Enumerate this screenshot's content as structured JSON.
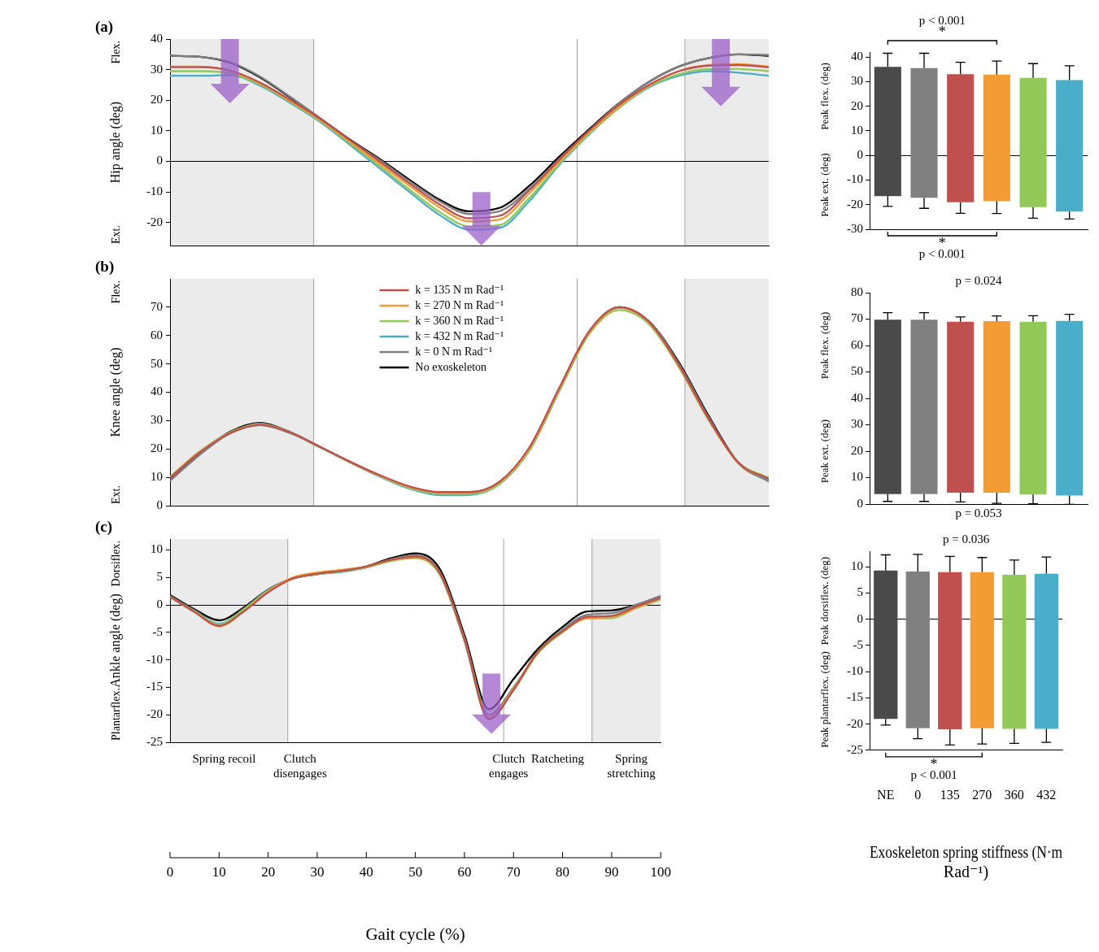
{
  "chart_data": [
    {
      "type": "line",
      "panel": "(a)",
      "y_label": "Hip angle (deg)",
      "y_end_labels": {
        "top": "Flex.",
        "bottom": "Ext."
      },
      "x": [
        0,
        5,
        10,
        15,
        20,
        25,
        30,
        35,
        40,
        45,
        50,
        55,
        60,
        65,
        70,
        75,
        80,
        85,
        90,
        95,
        100
      ],
      "xlim": [
        0,
        100
      ],
      "ylim": [
        -27.5,
        40
      ],
      "yticks": [
        -20,
        -10,
        0,
        10,
        20,
        30,
        40
      ],
      "tick_labels": "y",
      "shaded": [
        [
          0,
          24
        ],
        [
          86,
          100
        ]
      ],
      "vlines": [
        24,
        68,
        86
      ],
      "arrows": [
        {
          "x": 10,
          "y_from": 40,
          "y_to": 19,
          "color": "#9b5fc9"
        },
        {
          "x": 52,
          "y_from": -10,
          "y_to": -27.5,
          "color": "#9b5fc9"
        },
        {
          "x": 92,
          "y_from": 40,
          "y_to": 18,
          "color": "#9b5fc9"
        }
      ],
      "series": [
        {
          "name": "k = 135 N m Rad⁻¹",
          "color": "#c0504d",
          "values": [
            30.8,
            30.8,
            29.7,
            25.8,
            20.2,
            14,
            7,
            0,
            -7.2,
            -14,
            -18.6,
            -17.8,
            -9.5,
            0.5,
            10,
            18.5,
            25,
            29.5,
            31.3,
            31.5,
            30.8
          ]
        },
        {
          "name": "k = 270 N m Rad⁻¹",
          "color": "#f39c33",
          "values": [
            31,
            31,
            29.6,
            25.5,
            19.8,
            13.6,
            6.5,
            -0.8,
            -8,
            -15,
            -19.6,
            -19,
            -10.5,
            0,
            9.5,
            18,
            24.8,
            29.5,
            31.5,
            31.8,
            31
          ]
        },
        {
          "name": "k = 360 N m Rad⁻¹",
          "color": "#92c857",
          "values": [
            29.5,
            29.5,
            28.8,
            25.2,
            19.6,
            13.4,
            6,
            -1.5,
            -9.2,
            -16.5,
            -21.2,
            -20.8,
            -12,
            -0.8,
            9,
            17.5,
            24.5,
            28.5,
            30.2,
            30.2,
            29.5
          ]
        },
        {
          "name": "k = 432 N m Rad⁻¹",
          "color": "#4aaecb",
          "values": [
            28,
            28,
            28.2,
            24.8,
            19.2,
            13,
            5.5,
            -2.2,
            -10,
            -17.5,
            -22.3,
            -21.8,
            -13,
            -1.2,
            8.8,
            17.5,
            24.2,
            28,
            29.5,
            29,
            28
          ]
        },
        {
          "name": "k = 0 N m Rad⁻¹",
          "color": "#808080",
          "values": [
            34.5,
            34.2,
            32.5,
            27.8,
            21.2,
            14.2,
            7,
            0.5,
            -6.5,
            -13,
            -17.2,
            -16.3,
            -9,
            0.8,
            10,
            19,
            26,
            31,
            33.8,
            35,
            34.8
          ]
        },
        {
          "name": "No exoskeleton",
          "color": "#000000",
          "values": [
            34.5,
            34.2,
            32.3,
            27.5,
            21,
            14.2,
            7.2,
            0.8,
            -6,
            -12.5,
            -16.3,
            -15.2,
            -8,
            1.5,
            10.5,
            19,
            26,
            31,
            33.8,
            35,
            34.5
          ]
        }
      ]
    },
    {
      "type": "line",
      "panel": "(b)",
      "y_label": "Knee angle (deg)",
      "y_end_labels": {
        "top": "Flex.",
        "bottom": "Ext."
      },
      "x": [
        0,
        5,
        10,
        15,
        20,
        25,
        30,
        35,
        40,
        45,
        50,
        55,
        60,
        65,
        70,
        75,
        80,
        85,
        90,
        95,
        100
      ],
      "xlim": [
        0,
        100
      ],
      "ylim": [
        0,
        80
      ],
      "yticks": [
        0,
        10,
        20,
        30,
        40,
        50,
        60,
        70
      ],
      "tick_labels": "y",
      "legend": "top",
      "shaded": [
        [
          0,
          24
        ],
        [
          86,
          100
        ]
      ],
      "vlines": [
        24,
        68,
        86
      ],
      "series": [
        {
          "name": "k = 135 N m Rad⁻¹",
          "color": "#c0504d",
          "values": [
            9.8,
            18.8,
            25.5,
            28.5,
            25.8,
            20.8,
            15.6,
            10.8,
            6.8,
            4.8,
            4.8,
            8.4,
            20.5,
            41.5,
            61.5,
            70,
            64.8,
            49.5,
            30.5,
            15,
            9.5
          ]
        },
        {
          "name": "k = 270 N m Rad⁻¹",
          "color": "#f39c33",
          "values": [
            10,
            19,
            25.6,
            28.6,
            25.8,
            20.8,
            15.5,
            10.6,
            6.6,
            4.6,
            4.6,
            8.2,
            20.2,
            41.2,
            61.2,
            69.8,
            64.6,
            49.2,
            30.2,
            14.8,
            9.5
          ]
        },
        {
          "name": "k = 360 N m Rad⁻¹",
          "color": "#92c857",
          "values": [
            10.2,
            19.2,
            25.8,
            28.6,
            25.8,
            20.8,
            15.5,
            10.5,
            6.3,
            4.2,
            4.2,
            7.6,
            19.5,
            40.5,
            60.5,
            69,
            64,
            48.8,
            30,
            15.2,
            9.8
          ]
        },
        {
          "name": "k = 432 N m Rad⁻¹",
          "color": "#4aaecb",
          "values": [
            9.8,
            18.8,
            25.5,
            28.4,
            25.6,
            20.6,
            15.3,
            10.3,
            6,
            3.7,
            3.8,
            7.5,
            19.6,
            40.8,
            61,
            69.8,
            64.8,
            49.2,
            30.2,
            15,
            9.2
          ]
        },
        {
          "name": "k = 0 N m Rad⁻¹",
          "color": "#808080",
          "values": [
            8.8,
            18,
            25.5,
            29,
            26,
            20.8,
            15.5,
            10.5,
            6.4,
            4.5,
            4.5,
            7.8,
            19.5,
            40.5,
            61,
            70,
            65,
            50,
            31,
            14.8,
            8.5
          ]
        },
        {
          "name": "No exoskeleton",
          "color": "#000000",
          "values": [
            9,
            18.5,
            26,
            29.2,
            26,
            20.8,
            15.5,
            10.5,
            6.5,
            4.6,
            4.6,
            8,
            19.5,
            40.5,
            61,
            70,
            65,
            50.5,
            31.5,
            15,
            8.8
          ]
        }
      ]
    },
    {
      "type": "line",
      "panel": "(c)",
      "y_label": "Ankle angle (deg)",
      "y_end_labels": {
        "top": "Dorsiflex.",
        "bottom": "Plantarflex."
      },
      "x_label": "Gait cycle (%)",
      "x": [
        0,
        5,
        10,
        15,
        20,
        25,
        30,
        35,
        40,
        45,
        50,
        55,
        60,
        65,
        70,
        75,
        80,
        85,
        90,
        95,
        100
      ],
      "xlim": [
        0,
        100
      ],
      "xticks": [
        0,
        10,
        20,
        30,
        40,
        50,
        60,
        70,
        80,
        90,
        100
      ],
      "ylim": [
        -25,
        12
      ],
      "yticks": [
        -25,
        -20,
        -15,
        -10,
        -5,
        0,
        5,
        10
      ],
      "shaded": [
        [
          0,
          24
        ],
        [
          86,
          100
        ]
      ],
      "vlines": [
        24,
        68,
        86
      ],
      "arrows": [
        {
          "x": 65.5,
          "y_from": -12.5,
          "y_to": -23.5,
          "color": "#9b5fc9"
        }
      ],
      "phase_labels": [
        {
          "x": 11,
          "text": "Spring recoil"
        },
        {
          "x": 26.5,
          "text": "Clutch disengages"
        },
        {
          "x": 69,
          "text": "Clutch engages"
        },
        {
          "x": 79,
          "text": "Ratcheting"
        },
        {
          "x": 94,
          "text": "Spring stretching"
        }
      ],
      "series": [
        {
          "name": "k = 135 N m Rad⁻¹",
          "color": "#c0504d",
          "values": [
            1.5,
            -1.3,
            -3.8,
            -1.2,
            2.3,
            4.8,
            5.7,
            6.2,
            7,
            8.2,
            8.8,
            5.8,
            -6.3,
            -20.8,
            -15.5,
            -8.5,
            -4.8,
            -2.2,
            -2,
            -0.3,
            1.3
          ]
        },
        {
          "name": "k = 270 N m Rad⁻¹",
          "color": "#f39c33",
          "values": [
            1.5,
            -1.3,
            -3.9,
            -1.2,
            2.5,
            5,
            5.9,
            6.4,
            7,
            8.2,
            8.7,
            5.7,
            -6.3,
            -20.6,
            -15.3,
            -8.5,
            -4.8,
            -2.4,
            -2.2,
            -0.5,
            1.2
          ]
        },
        {
          "name": "k = 360 N m Rad⁻¹",
          "color": "#92c857",
          "values": [
            1.4,
            -1.2,
            -3.6,
            -0.8,
            2.6,
            4.8,
            5.6,
            6.1,
            6.8,
            8,
            8.5,
            5.5,
            -6.5,
            -20.5,
            -15.5,
            -8.8,
            -5,
            -2.5,
            -2.4,
            -0.6,
            1
          ]
        },
        {
          "name": "k = 432 N m Rad⁻¹",
          "color": "#4aaecb",
          "values": [
            1.5,
            -1.2,
            -3.5,
            -0.8,
            2.7,
            4.8,
            5.6,
            6,
            6.8,
            8.1,
            8.6,
            5.5,
            -6.6,
            -20.8,
            -15.4,
            -8.6,
            -4.8,
            -2.2,
            -2,
            -0.4,
            1.3
          ]
        },
        {
          "name": "k = 0 N m Rad⁻¹",
          "color": "#808080",
          "values": [
            1.6,
            -1,
            -3.5,
            -0.8,
            2.6,
            4.8,
            5.6,
            6.2,
            7,
            8.3,
            9,
            6,
            -6,
            -20,
            -15,
            -8.5,
            -4.5,
            -1.8,
            -1.5,
            0,
            1.6
          ]
        },
        {
          "name": "No exoskeleton",
          "color": "#000000",
          "values": [
            1.8,
            -0.8,
            -2.8,
            -0.5,
            2.8,
            4.8,
            5.6,
            6.2,
            7,
            8.5,
            9.4,
            6.5,
            -5.5,
            -19,
            -13.5,
            -8,
            -4,
            -1.2,
            -1,
            0,
            1.6
          ]
        }
      ]
    },
    {
      "type": "bar",
      "categories": [
        "NE",
        "0",
        "135",
        "270",
        "360",
        "432"
      ],
      "colors": [
        "#4a4a4a",
        "#808080",
        "#c0504d",
        "#f39c33",
        "#92c857",
        "#4aaecb"
      ],
      "ylim": [
        -30,
        42
      ],
      "yticks": [
        -30,
        -20,
        -10,
        0,
        10,
        20,
        30,
        40
      ],
      "tick_labels": "y",
      "series": [
        {
          "name": "Peak flex. (deg)",
          "values": [
            36,
            35.5,
            33,
            32.8,
            31.5,
            30.6
          ],
          "errors": [
            5.5,
            6,
            4.8,
            5.5,
            5.8,
            5.8
          ]
        },
        {
          "name": "Peak ext. (deg)",
          "values": [
            -16.5,
            -17.2,
            -19,
            -18.6,
            -21,
            -22.8
          ],
          "errors": [
            4.2,
            4.3,
            4.5,
            5,
            4.5,
            3
          ]
        }
      ],
      "annotations": [
        {
          "position": "top",
          "text": "p < 0.001",
          "bracket": [
            "NE",
            "270"
          ],
          "symbol": "*"
        },
        {
          "position": "bottom",
          "text": "p < 0.001",
          "bracket": [
            "NE",
            "270"
          ],
          "symbol": "*"
        }
      ]
    },
    {
      "type": "bar",
      "categories": [
        "NE",
        "0",
        "135",
        "270",
        "360",
        "432"
      ],
      "colors": [
        "#4a4a4a",
        "#808080",
        "#c0504d",
        "#f39c33",
        "#92c857",
        "#4aaecb"
      ],
      "ylim": [
        0,
        80
      ],
      "yticks": [
        0,
        10,
        20,
        30,
        40,
        50,
        60,
        70,
        80
      ],
      "tick_labels": "y",
      "series": [
        {
          "name": "Peak flex. (deg)",
          "values": [
            69.8,
            69.8,
            69,
            69.2,
            69,
            69.3
          ],
          "errors": [
            2.6,
            2.6,
            1.8,
            2,
            2.3,
            2.5
          ]
        },
        {
          "name": "Peak ext. (deg)",
          "values": [
            3.8,
            3.8,
            4.3,
            4.3,
            3.6,
            3.2
          ],
          "errors": [
            2.8,
            2.8,
            3.5,
            4,
            3.5,
            3.3
          ]
        }
      ],
      "annotations": [
        {
          "position": "top",
          "text": "p = 0.024"
        },
        {
          "position": "bottom",
          "text": "p = 0.053"
        }
      ]
    },
    {
      "type": "bar",
      "categories": [
        "NE",
        "0",
        "135",
        "270",
        "360",
        "432"
      ],
      "colors": [
        "#4a4a4a",
        "#808080",
        "#c0504d",
        "#f39c33",
        "#92c857",
        "#4aaecb"
      ],
      "x_label": "Exoskeleton spring stiffness (N·m Rad⁻¹)",
      "ylim": [
        -25,
        13
      ],
      "yticks": [
        -25,
        -20,
        -15,
        -10,
        -5,
        0,
        5,
        10
      ],
      "series": [
        {
          "name": "Peak dorsiflex. (deg)",
          "values": [
            9.3,
            9.1,
            9,
            9,
            8.5,
            8.7
          ],
          "errors": [
            3,
            3.3,
            3,
            2.8,
            2.8,
            3.2
          ]
        },
        {
          "name": "Peak plantarflex. (deg)",
          "values": [
            -19,
            -20.8,
            -21,
            -20.8,
            -20.9,
            -20.9
          ],
          "errors": [
            1.2,
            2,
            3,
            3,
            2.8,
            2.6
          ]
        }
      ],
      "annotations": [
        {
          "position": "top",
          "text": "p = 0.036"
        },
        {
          "position": "bottom",
          "text": "p < 0.001",
          "bracket": [
            "NE",
            "270"
          ],
          "symbol": "*"
        }
      ]
    }
  ]
}
